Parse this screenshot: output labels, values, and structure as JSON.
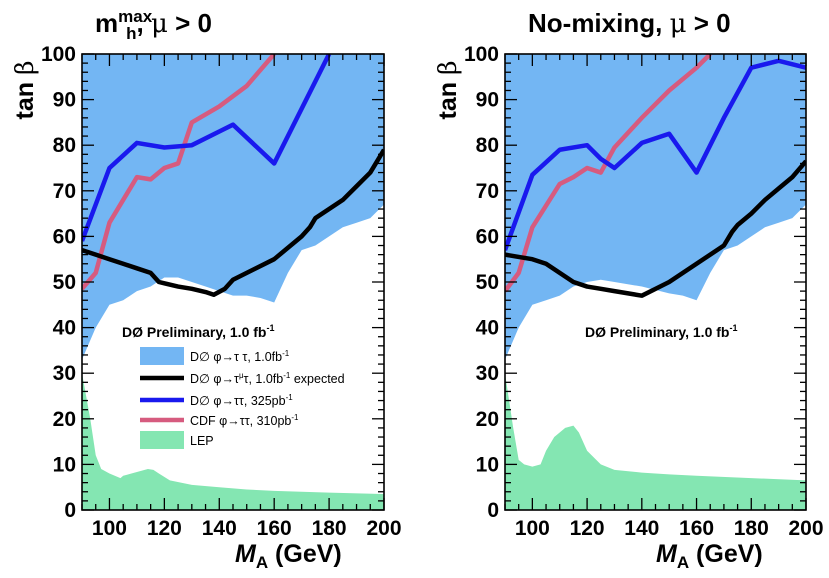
{
  "chart_data": [
    {
      "type": "area",
      "title": {
        "m": "m",
        "sub": "h",
        "sup": "max",
        "rest": ", ",
        "greek": "μ",
        "cond": " > 0"
      },
      "ylabel": {
        "text": "tan ",
        "greek": "β"
      },
      "xlabel": {
        "italic": "M",
        "sub": "A",
        "rest": " (GeV)"
      },
      "xlim": [
        90,
        200
      ],
      "ylim": [
        0,
        100
      ],
      "xticks": [
        100,
        120,
        140,
        160,
        180,
        200
      ],
      "yticks": [
        0,
        10,
        20,
        30,
        40,
        50,
        60,
        70,
        80,
        90,
        100
      ],
      "annotation": {
        "text": "DØ Preliminary, 1.0 fb",
        "sup": "-1"
      },
      "colors": {
        "d0_excluded": "#73b6f3",
        "lep": "#84e6b2",
        "d0_expected": "#000000",
        "d0_325": "#1919ee",
        "cdf_310": "#d65b7f"
      },
      "legend": [
        {
          "key": "d0_excluded",
          "kind": "box",
          "label": "D∅ φ→τ τ, 1.0fb",
          "sup": "-1"
        },
        {
          "key": "d0_expected",
          "kind": "line",
          "label": "D∅ φ→τ",
          "sup": "μ",
          "rest": "τ, 1.0fb",
          "sup2": "-1",
          "rest2": " expected"
        },
        {
          "key": "d0_325",
          "kind": "line",
          "label": "D∅ φ→ττ, 325pb",
          "sup": "-1"
        },
        {
          "key": "cdf_310",
          "kind": "line",
          "label": "CDF φ→ττ, 310pb",
          "sup": "-1"
        },
        {
          "key": "lep",
          "kind": "box",
          "label": "LEP"
        }
      ],
      "series": [
        {
          "key": "d0_excluded",
          "name": "D∅ φ→τ τ, 1.0fb-1",
          "kind": "band",
          "lower": [
            [
              90,
              33
            ],
            [
              95,
              40
            ],
            [
              100,
              45
            ],
            [
              105,
              46
            ],
            [
              110,
              48
            ],
            [
              115,
              49
            ],
            [
              120,
              51
            ],
            [
              125,
              51
            ],
            [
              130,
              50
            ],
            [
              135,
              49
            ],
            [
              140,
              48
            ],
            [
              145,
              47
            ],
            [
              150,
              47
            ],
            [
              155,
              46.5
            ],
            [
              160,
              45.5
            ],
            [
              165,
              52
            ],
            [
              170,
              57
            ],
            [
              175,
              58
            ],
            [
              180,
              60
            ],
            [
              185,
              62
            ],
            [
              190,
              63
            ],
            [
              195,
              64
            ],
            [
              200,
              67
            ]
          ],
          "upper": [
            [
              90,
              100
            ],
            [
              200,
              100
            ]
          ]
        },
        {
          "key": "lep",
          "name": "LEP",
          "kind": "fill",
          "upper": [
            [
              90,
              30
            ],
            [
              93,
              20
            ],
            [
              95,
              12
            ],
            [
              97,
              9
            ],
            [
              100,
              8
            ],
            [
              104,
              7
            ],
            [
              105,
              7.5
            ],
            [
              108,
              8
            ],
            [
              111,
              8.5
            ],
            [
              114,
              9
            ],
            [
              116,
              8.8
            ],
            [
              118,
              8
            ],
            [
              122,
              6.5
            ],
            [
              130,
              5.5
            ],
            [
              140,
              5
            ],
            [
              150,
              4.5
            ],
            [
              160,
              4.2
            ],
            [
              180,
              3.8
            ],
            [
              200,
              3.5
            ]
          ]
        },
        {
          "key": "d0_expected",
          "name": "D∅ φ→τμτ, 1.0fb-1 expected",
          "kind": "line",
          "points": [
            [
              90,
              57
            ],
            [
              95,
              56
            ],
            [
              100,
              55
            ],
            [
              105,
              54
            ],
            [
              110,
              53
            ],
            [
              115,
              52
            ],
            [
              118,
              50
            ],
            [
              120,
              49.7
            ],
            [
              125,
              49
            ],
            [
              130,
              48.5
            ],
            [
              135,
              47.8
            ],
            [
              138,
              47.2
            ],
            [
              142,
              48.5
            ],
            [
              145,
              50.5
            ],
            [
              150,
              52
            ],
            [
              160,
              55
            ],
            [
              170,
              60
            ],
            [
              173,
              62
            ],
            [
              175,
              64
            ],
            [
              180,
              66
            ],
            [
              185,
              68
            ],
            [
              190,
              71
            ],
            [
              195,
              74
            ],
            [
              200,
              79
            ]
          ]
        },
        {
          "key": "d0_325",
          "name": "D∅ φ→ττ, 325pb-1",
          "kind": "line",
          "points": [
            [
              90,
              59
            ],
            [
              100,
              75
            ],
            [
              110,
              80.5
            ],
            [
              120,
              79.5
            ],
            [
              130,
              80
            ],
            [
              140,
              83
            ],
            [
              145,
              84.5
            ],
            [
              160,
              76
            ],
            [
              180,
              100
            ]
          ]
        },
        {
          "key": "cdf_310",
          "name": "CDF φ→ττ, 310pb-1",
          "kind": "line",
          "points": [
            [
              90,
              48.5
            ],
            [
              95,
              52
            ],
            [
              100,
              63
            ],
            [
              110,
              73
            ],
            [
              115,
              72.5
            ],
            [
              120,
              75
            ],
            [
              125,
              76
            ],
            [
              130,
              85
            ],
            [
              140,
              88.5
            ],
            [
              150,
              93
            ],
            [
              160,
              100
            ]
          ]
        }
      ]
    },
    {
      "type": "area",
      "title": {
        "text": "No-mixing, ",
        "greek": "μ",
        "cond": " > 0"
      },
      "ylabel": {
        "text": "tan ",
        "greek": "β"
      },
      "xlabel": {
        "italic": "M",
        "sub": "A",
        "rest": " (GeV)"
      },
      "xlim": [
        90,
        200
      ],
      "ylim": [
        0,
        100
      ],
      "xticks": [
        100,
        120,
        140,
        160,
        180,
        200
      ],
      "yticks": [
        0,
        10,
        20,
        30,
        40,
        50,
        60,
        70,
        80,
        90,
        100
      ],
      "annotation": {
        "text": "DØ Preliminary, 1.0 fb",
        "sup": "-1"
      },
      "colors": {
        "d0_excluded": "#73b6f3",
        "lep": "#84e6b2",
        "d0_expected": "#000000",
        "d0_325": "#1919ee",
        "cdf_310": "#d65b7f"
      },
      "series": [
        {
          "key": "d0_excluded",
          "name": "D∅ φ→τ τ, 1.0fb-1",
          "kind": "band",
          "lower": [
            [
              90,
              33
            ],
            [
              95,
              40
            ],
            [
              100,
              45
            ],
            [
              105,
              46
            ],
            [
              110,
              47
            ],
            [
              115,
              49
            ],
            [
              120,
              50
            ],
            [
              125,
              50.5
            ],
            [
              130,
              50
            ],
            [
              140,
              49
            ],
            [
              150,
              47.5
            ],
            [
              155,
              47
            ],
            [
              160,
              46
            ],
            [
              165,
              52
            ],
            [
              170,
              57
            ],
            [
              175,
              58
            ],
            [
              180,
              60
            ],
            [
              185,
              62
            ],
            [
              190,
              63
            ],
            [
              195,
              64
            ],
            [
              200,
              67
            ]
          ],
          "upper": [
            [
              90,
              100
            ],
            [
              200,
              100
            ]
          ]
        },
        {
          "key": "lep",
          "name": "LEP",
          "kind": "fill",
          "upper": [
            [
              90,
              30
            ],
            [
              93,
              18
            ],
            [
              95,
              11
            ],
            [
              97,
              10
            ],
            [
              100,
              9.5
            ],
            [
              103,
              10
            ],
            [
              105,
              13
            ],
            [
              108,
              16
            ],
            [
              112,
              18
            ],
            [
              115,
              18.5
            ],
            [
              117,
              17
            ],
            [
              120,
              13
            ],
            [
              125,
              10
            ],
            [
              130,
              8.8
            ],
            [
              140,
              8.2
            ],
            [
              150,
              7.8
            ],
            [
              160,
              7.5
            ],
            [
              180,
              7
            ],
            [
              200,
              6.5
            ]
          ]
        },
        {
          "key": "d0_expected",
          "name": "D∅ φ→τμτ, 1.0fb-1 expected",
          "kind": "line",
          "points": [
            [
              90,
              56
            ],
            [
              95,
              55.5
            ],
            [
              100,
              55
            ],
            [
              105,
              54
            ],
            [
              110,
              52
            ],
            [
              115,
              50
            ],
            [
              120,
              49
            ],
            [
              125,
              48.5
            ],
            [
              130,
              48
            ],
            [
              135,
              47.5
            ],
            [
              140,
              47
            ],
            [
              145,
              48.5
            ],
            [
              150,
              50
            ],
            [
              160,
              54
            ],
            [
              170,
              58
            ],
            [
              173,
              61
            ],
            [
              175,
              62.5
            ],
            [
              180,
              65
            ],
            [
              185,
              68
            ],
            [
              190,
              70.5
            ],
            [
              195,
              73
            ],
            [
              200,
              76.5
            ]
          ]
        },
        {
          "key": "d0_325",
          "name": "D∅ φ→ττ, 325pb-1",
          "kind": "line",
          "points": [
            [
              90,
              57
            ],
            [
              100,
              73.5
            ],
            [
              110,
              79
            ],
            [
              120,
              80
            ],
            [
              125,
              77
            ],
            [
              130,
              75
            ],
            [
              140,
              80.5
            ],
            [
              150,
              82.5
            ],
            [
              160,
              74
            ],
            [
              170,
              86
            ],
            [
              180,
              97
            ],
            [
              190,
              98.5
            ],
            [
              200,
              97
            ]
          ]
        },
        {
          "key": "cdf_310",
          "name": "CDF φ→ττ, 310pb-1",
          "kind": "line",
          "points": [
            [
              90,
              48
            ],
            [
              95,
              52
            ],
            [
              100,
              62
            ],
            [
              110,
              71.5
            ],
            [
              115,
              73
            ],
            [
              120,
              75
            ],
            [
              125,
              74
            ],
            [
              130,
              79.5
            ],
            [
              140,
              86
            ],
            [
              150,
              92
            ],
            [
              160,
              97
            ],
            [
              165,
              100
            ]
          ]
        }
      ]
    }
  ]
}
